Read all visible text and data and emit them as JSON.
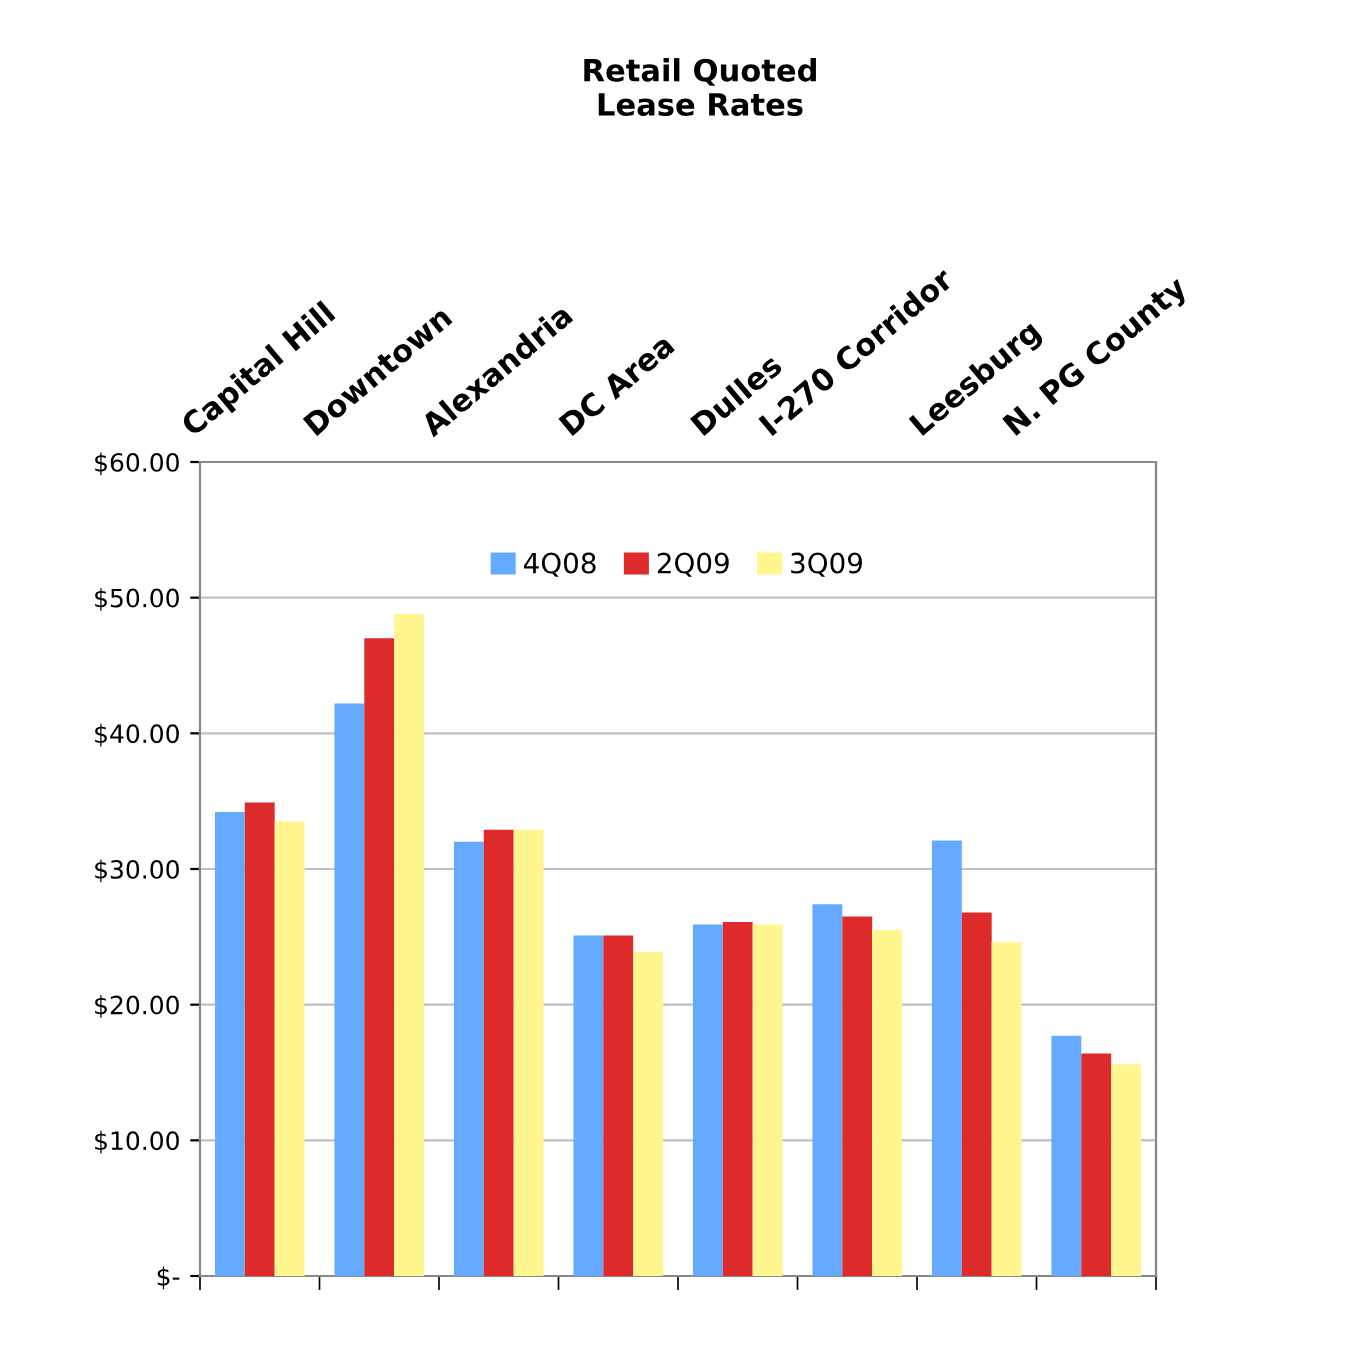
{
  "chart_data": {
    "type": "bar",
    "title": "Retail Quoted\nLease Rates",
    "categories": [
      "Capital Hill",
      "Downtown",
      "Alexandria",
      "DC Area",
      "Dulles",
      "I-270 Corridor",
      "Leesburg",
      "N. PG County"
    ],
    "series": [
      {
        "name": "4Q08",
        "color": "#66aaff",
        "values": [
          34.2,
          42.2,
          32.0,
          25.1,
          25.9,
          27.4,
          32.1,
          17.7
        ]
      },
      {
        "name": "2Q09",
        "color": "#dd2a2a",
        "values": [
          34.9,
          47.0,
          32.9,
          25.1,
          26.1,
          26.5,
          26.8,
          16.4
        ]
      },
      {
        "name": "3Q09",
        "color": "#fff68f",
        "values": [
          33.5,
          48.8,
          32.9,
          23.9,
          25.9,
          25.5,
          24.6,
          15.6
        ]
      }
    ],
    "ylim": [
      0,
      60
    ],
    "yticks": [
      {
        "value": 0,
        "label": "$-"
      },
      {
        "value": 10,
        "label": "$10.00"
      },
      {
        "value": 20,
        "label": "$20.00"
      },
      {
        "value": 30,
        "label": "$30.00"
      },
      {
        "value": 40,
        "label": "$40.00"
      },
      {
        "value": 50,
        "label": "$50.00"
      },
      {
        "value": 60,
        "label": "$60.00"
      }
    ],
    "grid": "y",
    "legend": "top"
  }
}
